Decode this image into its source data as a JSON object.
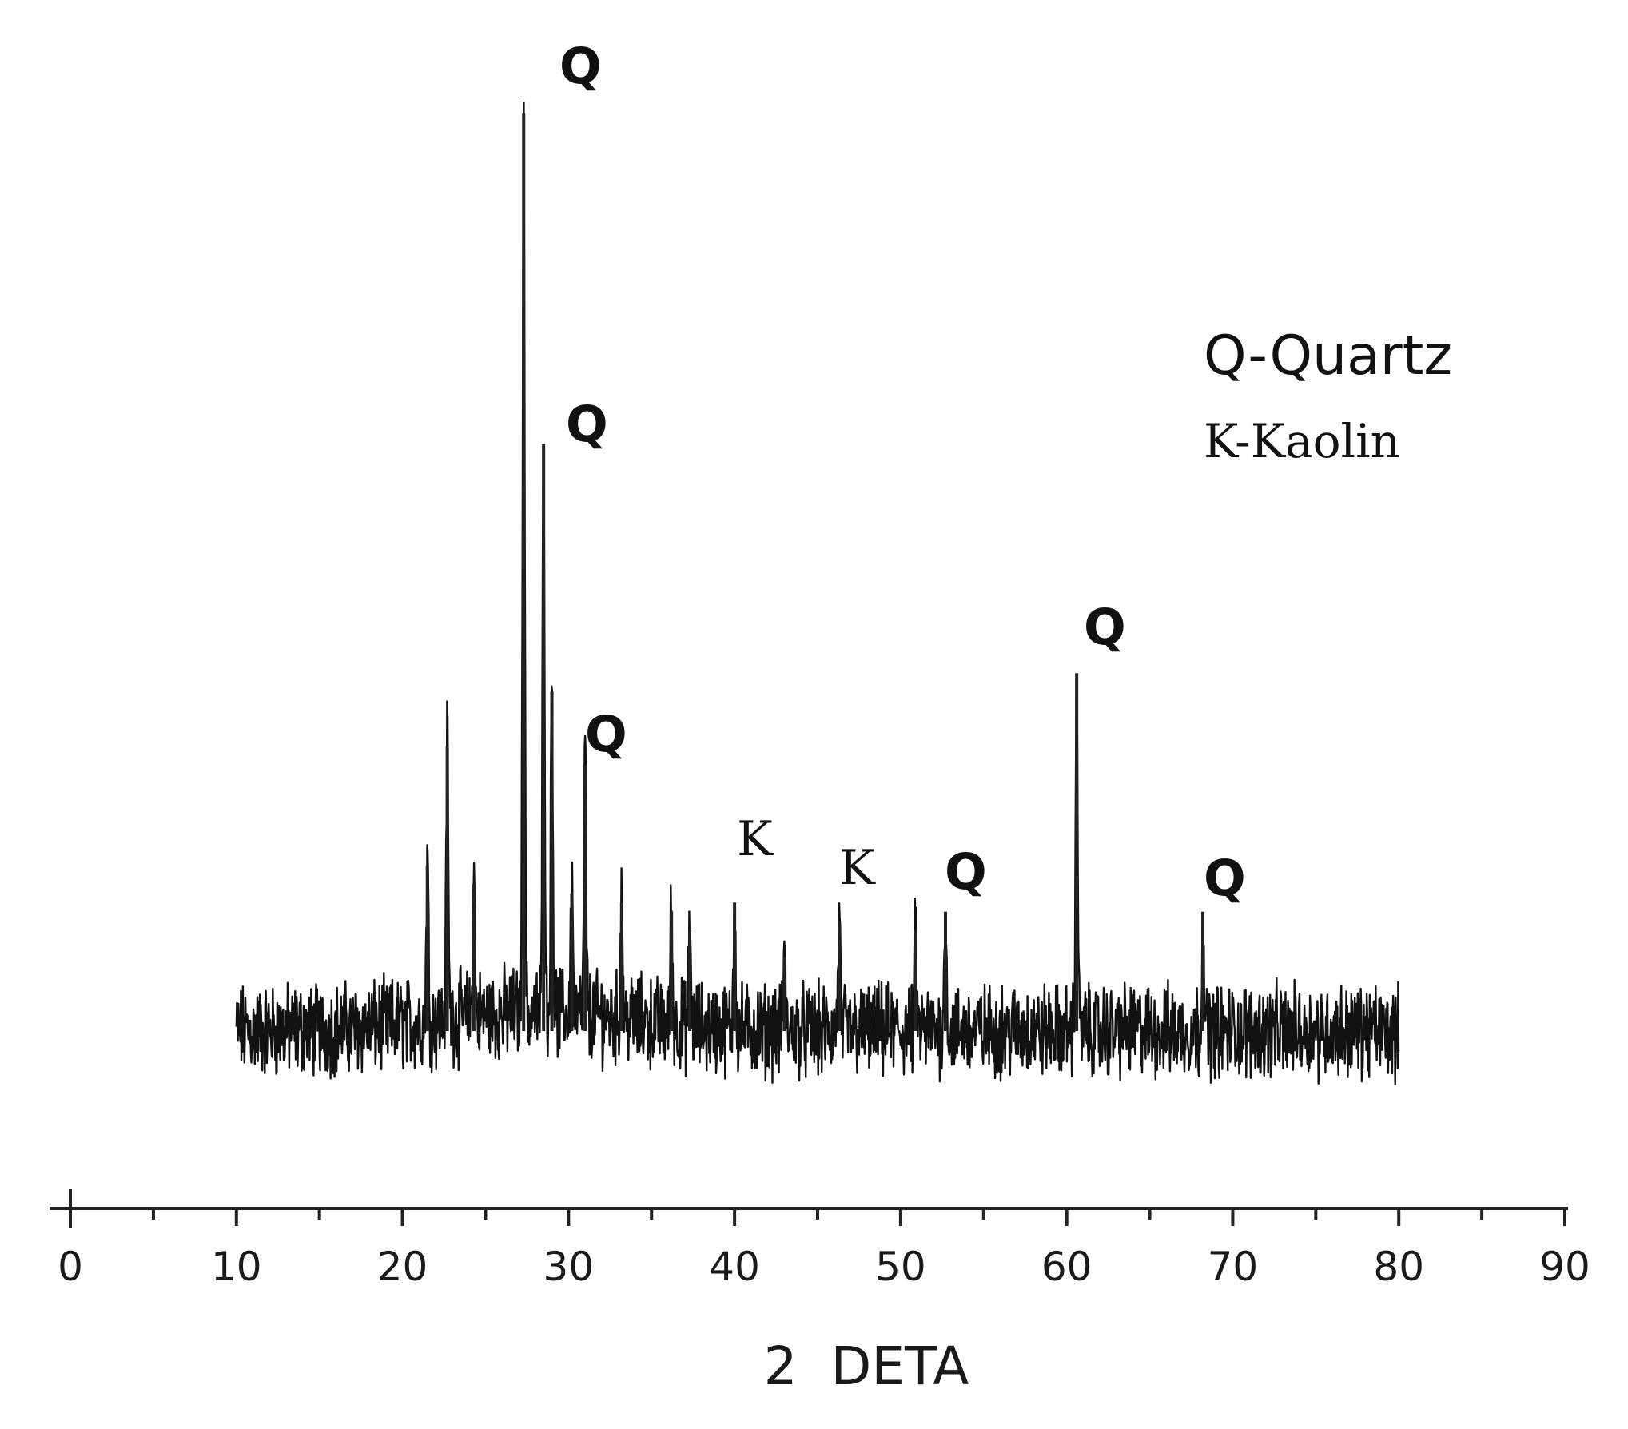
{
  "chart_data": {
    "type": "line",
    "title": "",
    "xlabel": "2  DETA",
    "ylabel": "",
    "xlim": [
      0,
      90
    ],
    "x_ticks": [
      "0",
      "10",
      "20",
      "30",
      "40",
      "50",
      "60",
      "70",
      "80",
      "90"
    ],
    "y_axis_shown": false,
    "grid": false,
    "baseline_range": [
      10,
      80
    ],
    "legend_placement": "top-right",
    "legend": [
      "Q-Quartz",
      "K-Kaolin"
    ],
    "peaks": [
      {
        "x": 21.5,
        "y": 0.18
      },
      {
        "x": 22.7,
        "y": 0.31
      },
      {
        "x": 24.3,
        "y": 0.16
      },
      {
        "x": 27.3,
        "y": 1.0,
        "label": "Q"
      },
      {
        "x": 28.5,
        "y": 0.64,
        "label": "Q"
      },
      {
        "x": 29.0,
        "y": 0.37
      },
      {
        "x": 30.2,
        "y": 0.15
      },
      {
        "x": 31.0,
        "y": 0.29,
        "label": "Q"
      },
      {
        "x": 33.2,
        "y": 0.14
      },
      {
        "x": 36.2,
        "y": 0.13
      },
      {
        "x": 37.3,
        "y": 0.11
      },
      {
        "x": 40.0,
        "y": 0.14,
        "label": "K"
      },
      {
        "x": 43.0,
        "y": 0.08
      },
      {
        "x": 46.3,
        "y": 0.12,
        "label": "K"
      },
      {
        "x": 50.9,
        "y": 0.11
      },
      {
        "x": 52.7,
        "y": 0.13,
        "label": "Q"
      },
      {
        "x": 60.6,
        "y": 0.39,
        "label": "Q"
      },
      {
        "x": 68.2,
        "y": 0.13,
        "label": "Q"
      }
    ],
    "noise_level": 0.04,
    "labels": {
      "q_main": "Q",
      "q_second": "Q",
      "q_third": "Q",
      "k_first": "K",
      "k_second": "K",
      "q_53": "Q",
      "q_60": "Q",
      "q_68": "Q"
    }
  }
}
